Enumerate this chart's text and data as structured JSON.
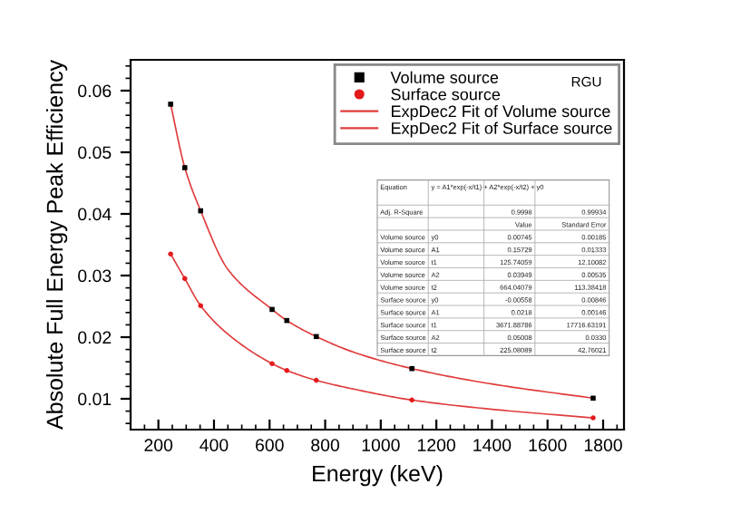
{
  "chart_data": {
    "type": "scatter",
    "xlabel": "Energy (keV)",
    "ylabel": "Absolute Full Energy Peak Efficiency",
    "xlim": [
      100,
      1875
    ],
    "xticks": [
      200,
      400,
      600,
      800,
      1000,
      1200,
      1400,
      1600,
      1800
    ],
    "ylim": [
      0.005,
      0.065
    ],
    "yticks": [
      0.01,
      0.02,
      0.03,
      0.04,
      0.05,
      0.06
    ],
    "legend": "top right",
    "grid": false,
    "series": [
      {
        "name": "Volume source",
        "color": "#000000",
        "marker": "square",
        "x": [
          244,
          295,
          352,
          609,
          662,
          768,
          1112,
          1764
        ],
        "values": [
          0.0578,
          0.0475,
          0.0405,
          0.0245,
          0.0227,
          0.0201,
          0.0149,
          0.0101
        ]
      },
      {
        "name": "Surface source",
        "color": "#e41a1c",
        "marker": "circle",
        "x": [
          244,
          295,
          352,
          609,
          662,
          768,
          1112,
          1764
        ],
        "values": [
          0.0335,
          0.0295,
          0.0251,
          0.0157,
          0.0146,
          0.013,
          0.0098,
          0.0069
        ]
      },
      {
        "name": "ExpDec2 Fit of Volume source",
        "type": "line",
        "color": "#e03c3c",
        "x": [
          244,
          295,
          352,
          450,
          609,
          662,
          768,
          900,
          1112,
          1400,
          1764
        ],
        "values": [
          0.0578,
          0.0475,
          0.0405,
          0.031,
          0.0245,
          0.0227,
          0.0201,
          0.0176,
          0.0149,
          0.0124,
          0.0101
        ]
      },
      {
        "name": "ExpDec2 Fit of Surface source",
        "type": "line",
        "color": "#e03c3c",
        "x": [
          244,
          295,
          352,
          450,
          609,
          662,
          768,
          900,
          1112,
          1400,
          1764
        ],
        "values": [
          0.0335,
          0.0295,
          0.0251,
          0.0205,
          0.0157,
          0.0146,
          0.013,
          0.0116,
          0.0098,
          0.0083,
          0.0069
        ]
      }
    ],
    "annotations": [
      "RGU",
      "Equation",
      "y = A1*exp(-x/t1) + A2*exp(-x/t2) + y0",
      "Adj. R-Square",
      "0.9998",
      "0.99934",
      "Value",
      "Standard Error",
      "Volume source",
      "y0",
      "0.00745",
      "0.00185",
      "Volume source",
      "A1",
      "0.15729",
      "0.01333",
      "Volume source",
      "t1",
      "125.74059",
      "12.10082",
      "Volume source",
      "A2",
      "0.03949",
      "0.00535",
      "Volume source",
      "t2",
      "664.04079",
      "113.38418",
      "Surface source",
      "y0",
      "-0.00558",
      "0.00846",
      "Surface source",
      "A1",
      "0.0218",
      "0.00146",
      "Surface source",
      "t1",
      "3671.88786",
      "17716.63191",
      "Surface source",
      "A2",
      "0.05008",
      "0.0330",
      "Surface source",
      "t2",
      "225.08089",
      "42.76021"
    ]
  }
}
